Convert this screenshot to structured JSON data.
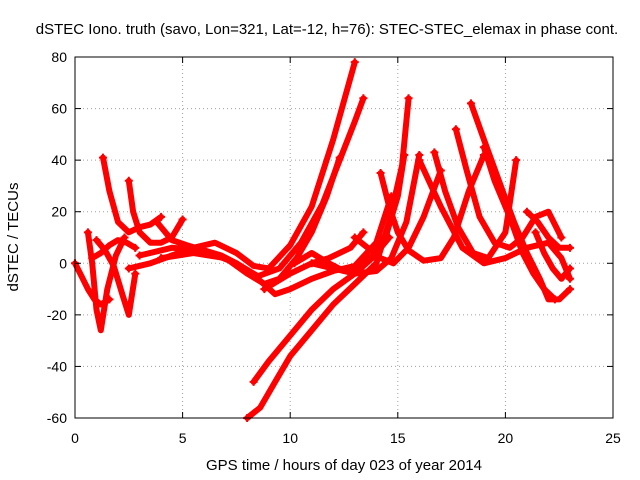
{
  "chart_data": {
    "type": "scatter",
    "title": "dSTEC Iono. truth (savo, Lon=321, Lat=-12, h=76): STEC-STEC_elemax in phase cont.",
    "xlabel": "GPS time / hours of day 023 of year 2014",
    "ylabel": "dSTEC  / TECUs",
    "xlim": [
      0,
      25
    ],
    "ylim": [
      -60,
      80
    ],
    "xticks": [
      0,
      5,
      10,
      15,
      20,
      25
    ],
    "yticks": [
      -60,
      -40,
      -20,
      0,
      20,
      40,
      60,
      80
    ],
    "grid": true,
    "color": "#ff0000",
    "marker": "plus",
    "series": [
      {
        "x": [
          0.0,
          0.3,
          0.6,
          0.9,
          1.2,
          1.6
        ],
        "y": [
          0,
          -5,
          -10,
          -14,
          -16,
          -14
        ]
      },
      {
        "x": [
          0.6,
          0.8,
          1.0,
          1.2,
          1.5,
          1.9,
          2.3
        ],
        "y": [
          12,
          0,
          -18,
          -26,
          -10,
          3,
          10
        ]
      },
      {
        "x": [
          1.3,
          1.6,
          2.0,
          2.5,
          3.0,
          3.5,
          4.0
        ],
        "y": [
          41,
          28,
          16,
          12,
          14,
          15,
          18
        ]
      },
      {
        "x": [
          2.5,
          2.7,
          3.0,
          3.5,
          4.0,
          4.5,
          5.0
        ],
        "y": [
          32,
          20,
          12,
          8,
          8,
          10,
          17
        ]
      },
      {
        "x": [
          1.0,
          1.4,
          1.8,
          2.2,
          2.5,
          2.8
        ],
        "y": [
          9,
          5,
          -1,
          -12,
          -20,
          -4
        ]
      },
      {
        "x": [
          0.8,
          1.2,
          1.6,
          2.0,
          2.4,
          2.8
        ],
        "y": [
          2,
          4,
          7,
          9,
          8,
          6
        ]
      },
      {
        "x": [
          3.8,
          4.5,
          5.2,
          6.0,
          6.8,
          7.5,
          8.0
        ],
        "y": [
          16,
          9,
          7,
          5,
          3,
          0,
          -3
        ]
      },
      {
        "x": [
          2.5,
          3.5,
          4.5,
          5.5,
          6.5,
          7.5,
          8.3,
          9.0,
          10.0,
          11.0,
          12.0,
          13.0
        ],
        "y": [
          -2,
          0,
          3,
          6,
          8,
          4,
          -1,
          -2,
          7,
          22,
          48,
          78
        ]
      },
      {
        "x": [
          3.0,
          4.5,
          6.0,
          7.5,
          8.5,
          9.5,
          10.5,
          11.5,
          12.3,
          13.0,
          13.4
        ],
        "y": [
          3,
          6,
          5,
          0,
          -5,
          -2,
          8,
          23,
          40,
          55,
          64
        ]
      },
      {
        "x": [
          4.0,
          5.5,
          7.0,
          8.0,
          8.8,
          9.5,
          10.3,
          11.0,
          11.7,
          12.3
        ],
        "y": [
          2,
          4,
          2,
          -4,
          -8,
          -6,
          2,
          12,
          26,
          41
        ]
      },
      {
        "x": [
          6.0,
          7.5,
          8.5,
          9.3,
          10.0,
          11.0,
          12.0,
          13.0,
          14.0,
          14.7
        ],
        "y": [
          5,
          0,
          -6,
          -12,
          -10,
          -6,
          -3,
          -1,
          8,
          26
        ]
      },
      {
        "x": [
          8.0,
          8.6,
          9.3,
          10.0,
          11.0,
          12.0,
          13.0,
          14.0,
          14.6,
          15.2,
          15.5
        ],
        "y": [
          -60,
          -56,
          -46,
          -36,
          -26,
          -16,
          -8,
          0,
          16,
          38,
          64
        ]
      },
      {
        "x": [
          8.3,
          9.0,
          10.0,
          11.0,
          12.0,
          13.0,
          13.8,
          14.5,
          15.0,
          15.3
        ],
        "y": [
          -46,
          -38,
          -28,
          -18,
          -10,
          -4,
          2,
          12,
          26,
          42
        ]
      },
      {
        "x": [
          8.8,
          10.0,
          11.0,
          12.0,
          13.0,
          14.0,
          14.7,
          15.4,
          16.0
        ],
        "y": [
          -10,
          -4,
          0,
          -2,
          -4,
          -3,
          2,
          16,
          42
        ]
      },
      {
        "x": [
          10.2,
          11.0,
          11.8,
          12.5,
          13.2,
          14.0,
          14.6
        ],
        "y": [
          0,
          4,
          0,
          -3,
          -1,
          4,
          10
        ]
      },
      {
        "x": [
          11.0,
          11.8,
          12.8,
          13.4
        ],
        "y": [
          0,
          2,
          6,
          12
        ]
      },
      {
        "x": [
          13.0,
          13.6,
          14.2,
          14.8,
          15.5,
          16.2,
          17.0
        ],
        "y": [
          10,
          6,
          2,
          0,
          6,
          18,
          36
        ]
      },
      {
        "x": [
          14.2,
          14.6,
          15.0,
          15.5,
          16.2,
          17.0,
          17.6,
          18.3,
          19.0
        ],
        "y": [
          35,
          22,
          12,
          5,
          1,
          2,
          10,
          28,
          42
        ]
      },
      {
        "x": [
          16.7,
          17.2,
          17.8,
          18.5,
          19.2,
          20.0,
          20.5
        ],
        "y": [
          43,
          28,
          14,
          4,
          2,
          12,
          40
        ]
      },
      {
        "x": [
          17.7,
          18.2,
          18.8,
          19.5,
          20.2,
          20.8,
          21.4,
          22.0,
          22.6
        ],
        "y": [
          52,
          36,
          18,
          8,
          6,
          10,
          18,
          20,
          10
        ]
      },
      {
        "x": [
          18.4,
          19.0,
          19.7,
          20.4,
          21.0,
          21.6,
          22.0,
          22.5,
          23.0
        ],
        "y": [
          62,
          48,
          32,
          16,
          4,
          -6,
          -14,
          -14,
          -10
        ]
      },
      {
        "x": [
          19.0,
          19.5,
          20.2,
          20.8,
          21.3,
          21.8,
          22.3
        ],
        "y": [
          45,
          32,
          18,
          4,
          -4,
          -10,
          -14
        ]
      },
      {
        "x": [
          16.0,
          17.0,
          18.0,
          19.0,
          20.0,
          21.0,
          22.0,
          22.6,
          23.0
        ],
        "y": [
          40,
          22,
          6,
          0,
          2,
          6,
          8,
          2,
          -6
        ]
      },
      {
        "x": [
          21.0,
          21.5,
          22.0,
          22.5,
          23.0
        ],
        "y": [
          20,
          16,
          10,
          6,
          6
        ]
      },
      {
        "x": [
          21.4,
          21.8,
          22.2,
          22.6,
          23.0
        ],
        "y": [
          12,
          4,
          -2,
          -6,
          -2
        ]
      }
    ]
  }
}
